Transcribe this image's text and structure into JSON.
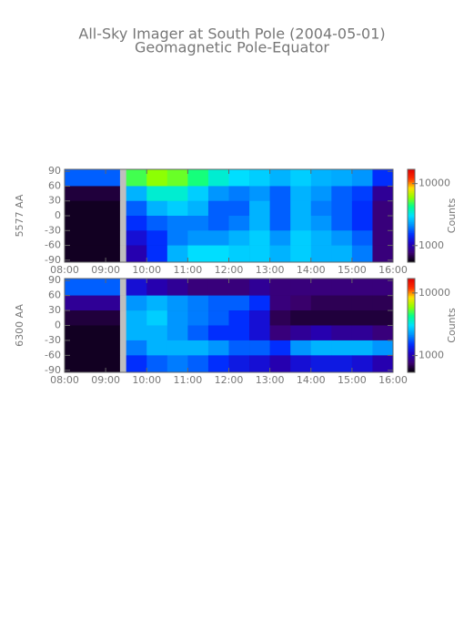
{
  "chart_data": [
    {
      "type": "heatmap",
      "title": "All-Sky Imager at South Pole (2004-05-01)",
      "subtitle": "Geomagnetic Pole-Equator",
      "ylabel": "5577 AA",
      "x_edges": [
        8,
        9.35,
        9.5,
        10,
        10.5,
        11,
        11.5,
        12,
        12.5,
        13,
        13.5,
        14,
        14.5,
        15,
        15.5,
        16
      ],
      "y_edges": [
        90,
        60,
        30,
        0,
        -30,
        -60,
        -90
      ],
      "values": [
        [
          1800,
          null,
          5000,
          6000,
          5500,
          4500,
          3500,
          3000,
          2800,
          2500,
          2800,
          2500,
          2400,
          2200,
          1500
        ],
        [
          650,
          null,
          2500,
          3500,
          3500,
          2800,
          2200,
          2000,
          2200,
          1800,
          2500,
          2200,
          1800,
          1600,
          900
        ],
        [
          600,
          null,
          1800,
          2500,
          2800,
          2500,
          1800,
          1800,
          2500,
          1800,
          2500,
          2000,
          1800,
          1500,
          800
        ],
        [
          600,
          null,
          1500,
          1800,
          2000,
          2000,
          1800,
          2000,
          2500,
          1800,
          2500,
          2200,
          1800,
          1500,
          800
        ],
        [
          600,
          null,
          1200,
          1500,
          2000,
          2200,
          2200,
          2500,
          2800,
          2200,
          2800,
          2500,
          2200,
          1800,
          800
        ],
        [
          600,
          null,
          1000,
          1500,
          2500,
          3000,
          3000,
          2800,
          2800,
          2500,
          2800,
          2500,
          2500,
          2000,
          800
        ]
      ],
      "xlim": [
        8,
        16
      ],
      "xticks": [
        {
          "value": 8,
          "label": "08:00"
        },
        {
          "value": 9,
          "label": "09:00"
        },
        {
          "value": 10,
          "label": "10:00"
        },
        {
          "value": 11,
          "label": "11:00"
        },
        {
          "value": 12,
          "label": "12:00"
        },
        {
          "value": 13,
          "label": "13:00"
        },
        {
          "value": 14,
          "label": "14:00"
        },
        {
          "value": 15,
          "label": "15:00"
        },
        {
          "value": 16,
          "label": "16:00"
        }
      ],
      "ylim": [
        -94,
        94
      ],
      "yticks": [
        90,
        60,
        30,
        0,
        -30,
        -60,
        -90
      ],
      "colorbar": {
        "label": "Counts",
        "lim": [
          540,
          17000
        ],
        "log": true,
        "ticks": [
          1000,
          10000
        ]
      },
      "colorscale": [
        "#000000",
        "#3c0070",
        "#2000c0",
        "#0030ff",
        "#0090ff",
        "#00e0ff",
        "#00ff90",
        "#90ff00",
        "#ffe000",
        "#ff3000",
        "#e00000"
      ],
      "missing_color": "#bebebe"
    },
    {
      "type": "heatmap",
      "ylabel": "6300 AA",
      "x_edges": [
        8,
        9.35,
        9.5,
        10,
        10.5,
        11,
        11.5,
        12,
        12.5,
        13,
        13.5,
        14,
        14.5,
        15,
        15.5,
        16
      ],
      "y_edges": [
        90,
        60,
        30,
        0,
        -30,
        -60,
        -90
      ],
      "values": [
        [
          1800,
          null,
          1200,
          1000,
          900,
          800,
          800,
          800,
          900,
          800,
          800,
          800,
          800,
          800,
          800
        ],
        [
          900,
          null,
          2200,
          2500,
          2200,
          2000,
          1800,
          1800,
          1500,
          800,
          750,
          700,
          700,
          700,
          700
        ],
        [
          650,
          null,
          2500,
          2800,
          2200,
          2000,
          1800,
          1500,
          1200,
          700,
          650,
          650,
          650,
          650,
          650
        ],
        [
          600,
          null,
          2500,
          2500,
          2200,
          1800,
          1500,
          1500,
          1200,
          800,
          900,
          1000,
          900,
          900,
          800
        ],
        [
          600,
          null,
          2000,
          2500,
          2500,
          2500,
          2200,
          1800,
          1800,
          1500,
          2200,
          2500,
          2500,
          2500,
          2200
        ],
        [
          600,
          null,
          1500,
          1800,
          2000,
          1800,
          1500,
          1300,
          1200,
          1000,
          1200,
          1300,
          1300,
          1200,
          1000
        ]
      ],
      "xlim": [
        8,
        16
      ],
      "xticks": [
        {
          "value": 8,
          "label": "08:00"
        },
        {
          "value": 9,
          "label": "09:00"
        },
        {
          "value": 10,
          "label": "10:00"
        },
        {
          "value": 11,
          "label": "11:00"
        },
        {
          "value": 12,
          "label": "12:00"
        },
        {
          "value": 13,
          "label": "13:00"
        },
        {
          "value": 14,
          "label": "14:00"
        },
        {
          "value": 15,
          "label": "15:00"
        },
        {
          "value": 16,
          "label": "16:00"
        }
      ],
      "ylim": [
        -94,
        94
      ],
      "yticks": [
        90,
        60,
        30,
        0,
        -30,
        -60,
        -90
      ],
      "colorbar": {
        "label": "Counts",
        "lim": [
          540,
          17000
        ],
        "log": true,
        "ticks": [
          1000,
          10000
        ]
      },
      "colorscale": [
        "#000000",
        "#3c0070",
        "#2000c0",
        "#0030ff",
        "#0090ff",
        "#00e0ff",
        "#00ff90",
        "#90ff00",
        "#ffe000",
        "#ff3000",
        "#e00000"
      ],
      "missing_color": "#bebebe"
    }
  ]
}
